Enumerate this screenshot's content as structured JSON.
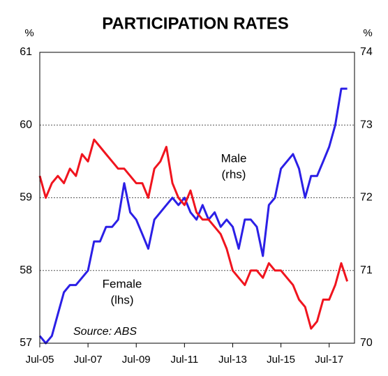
{
  "chart_data": {
    "type": "line",
    "title": "PARTICIPATION RATES",
    "y_unit": "%",
    "y2_unit": "%",
    "categories": [
      "Jul-05",
      "Oct-05",
      "Jan-06",
      "Apr-06",
      "Jul-06",
      "Oct-06",
      "Jan-07",
      "Apr-07",
      "Jul-07",
      "Oct-07",
      "Jan-08",
      "Apr-08",
      "Jul-08",
      "Oct-08",
      "Jan-09",
      "Apr-09",
      "Jul-09",
      "Oct-09",
      "Jan-10",
      "Apr-10",
      "Jul-10",
      "Oct-10",
      "Jan-11",
      "Apr-11",
      "Jul-11",
      "Oct-11",
      "Jan-12",
      "Apr-12",
      "Jul-12",
      "Oct-12",
      "Jan-13",
      "Apr-13",
      "Jul-13",
      "Oct-13",
      "Jan-14",
      "Apr-14",
      "Jul-14",
      "Oct-14",
      "Jan-15",
      "Apr-15",
      "Jul-15",
      "Oct-15",
      "Jan-16",
      "Apr-16",
      "Jul-16",
      "Oct-16",
      "Jan-17",
      "Apr-17",
      "Jul-17",
      "Oct-17",
      "Jan-18",
      "Apr-18"
    ],
    "xticks": [
      "Jul-05",
      "Jul-07",
      "Jul-09",
      "Jul-11",
      "Jul-13",
      "Jul-15",
      "Jul-17"
    ],
    "series": [
      {
        "name": "Female",
        "label": "(lhs)",
        "color": "#2b1fe6",
        "axis": "y",
        "values": [
          57.1,
          57.0,
          57.1,
          57.4,
          57.7,
          57.8,
          57.8,
          57.9,
          58.0,
          58.4,
          58.4,
          58.6,
          58.6,
          58.7,
          59.2,
          58.8,
          58.7,
          58.5,
          58.3,
          58.7,
          58.8,
          58.9,
          59.0,
          58.9,
          59.0,
          58.8,
          58.7,
          58.9,
          58.7,
          58.8,
          58.6,
          58.7,
          58.6,
          58.3,
          58.7,
          58.7,
          58.6,
          58.2,
          58.9,
          59.0,
          59.4,
          59.5,
          59.6,
          59.4,
          59.0,
          59.3,
          59.3,
          59.5,
          59.7,
          60.0,
          60.5,
          60.5
        ]
      },
      {
        "name": "Male",
        "label": "(rhs)",
        "color": "#f0141e",
        "axis": "y2",
        "values": [
          72.3,
          72.0,
          72.2,
          72.3,
          72.2,
          72.4,
          72.3,
          72.6,
          72.5,
          72.8,
          72.7,
          72.6,
          72.5,
          72.4,
          72.4,
          72.3,
          72.2,
          72.2,
          72.0,
          72.4,
          72.5,
          72.7,
          72.2,
          72.0,
          71.9,
          72.1,
          71.8,
          71.7,
          71.7,
          71.6,
          71.5,
          71.3,
          71.0,
          70.9,
          70.8,
          71.0,
          71.0,
          70.9,
          71.1,
          71.0,
          71.0,
          70.9,
          70.8,
          70.6,
          70.5,
          70.2,
          70.3,
          70.6,
          70.6,
          70.8,
          71.1,
          70.85
        ]
      }
    ],
    "ylim": [
      57,
      61
    ],
    "yticks": [
      57,
      58,
      59,
      60,
      61
    ],
    "y2lim": [
      70,
      74
    ],
    "y2ticks": [
      70,
      71,
      72,
      73,
      74
    ],
    "grid": true,
    "source": "Source: ABS"
  }
}
